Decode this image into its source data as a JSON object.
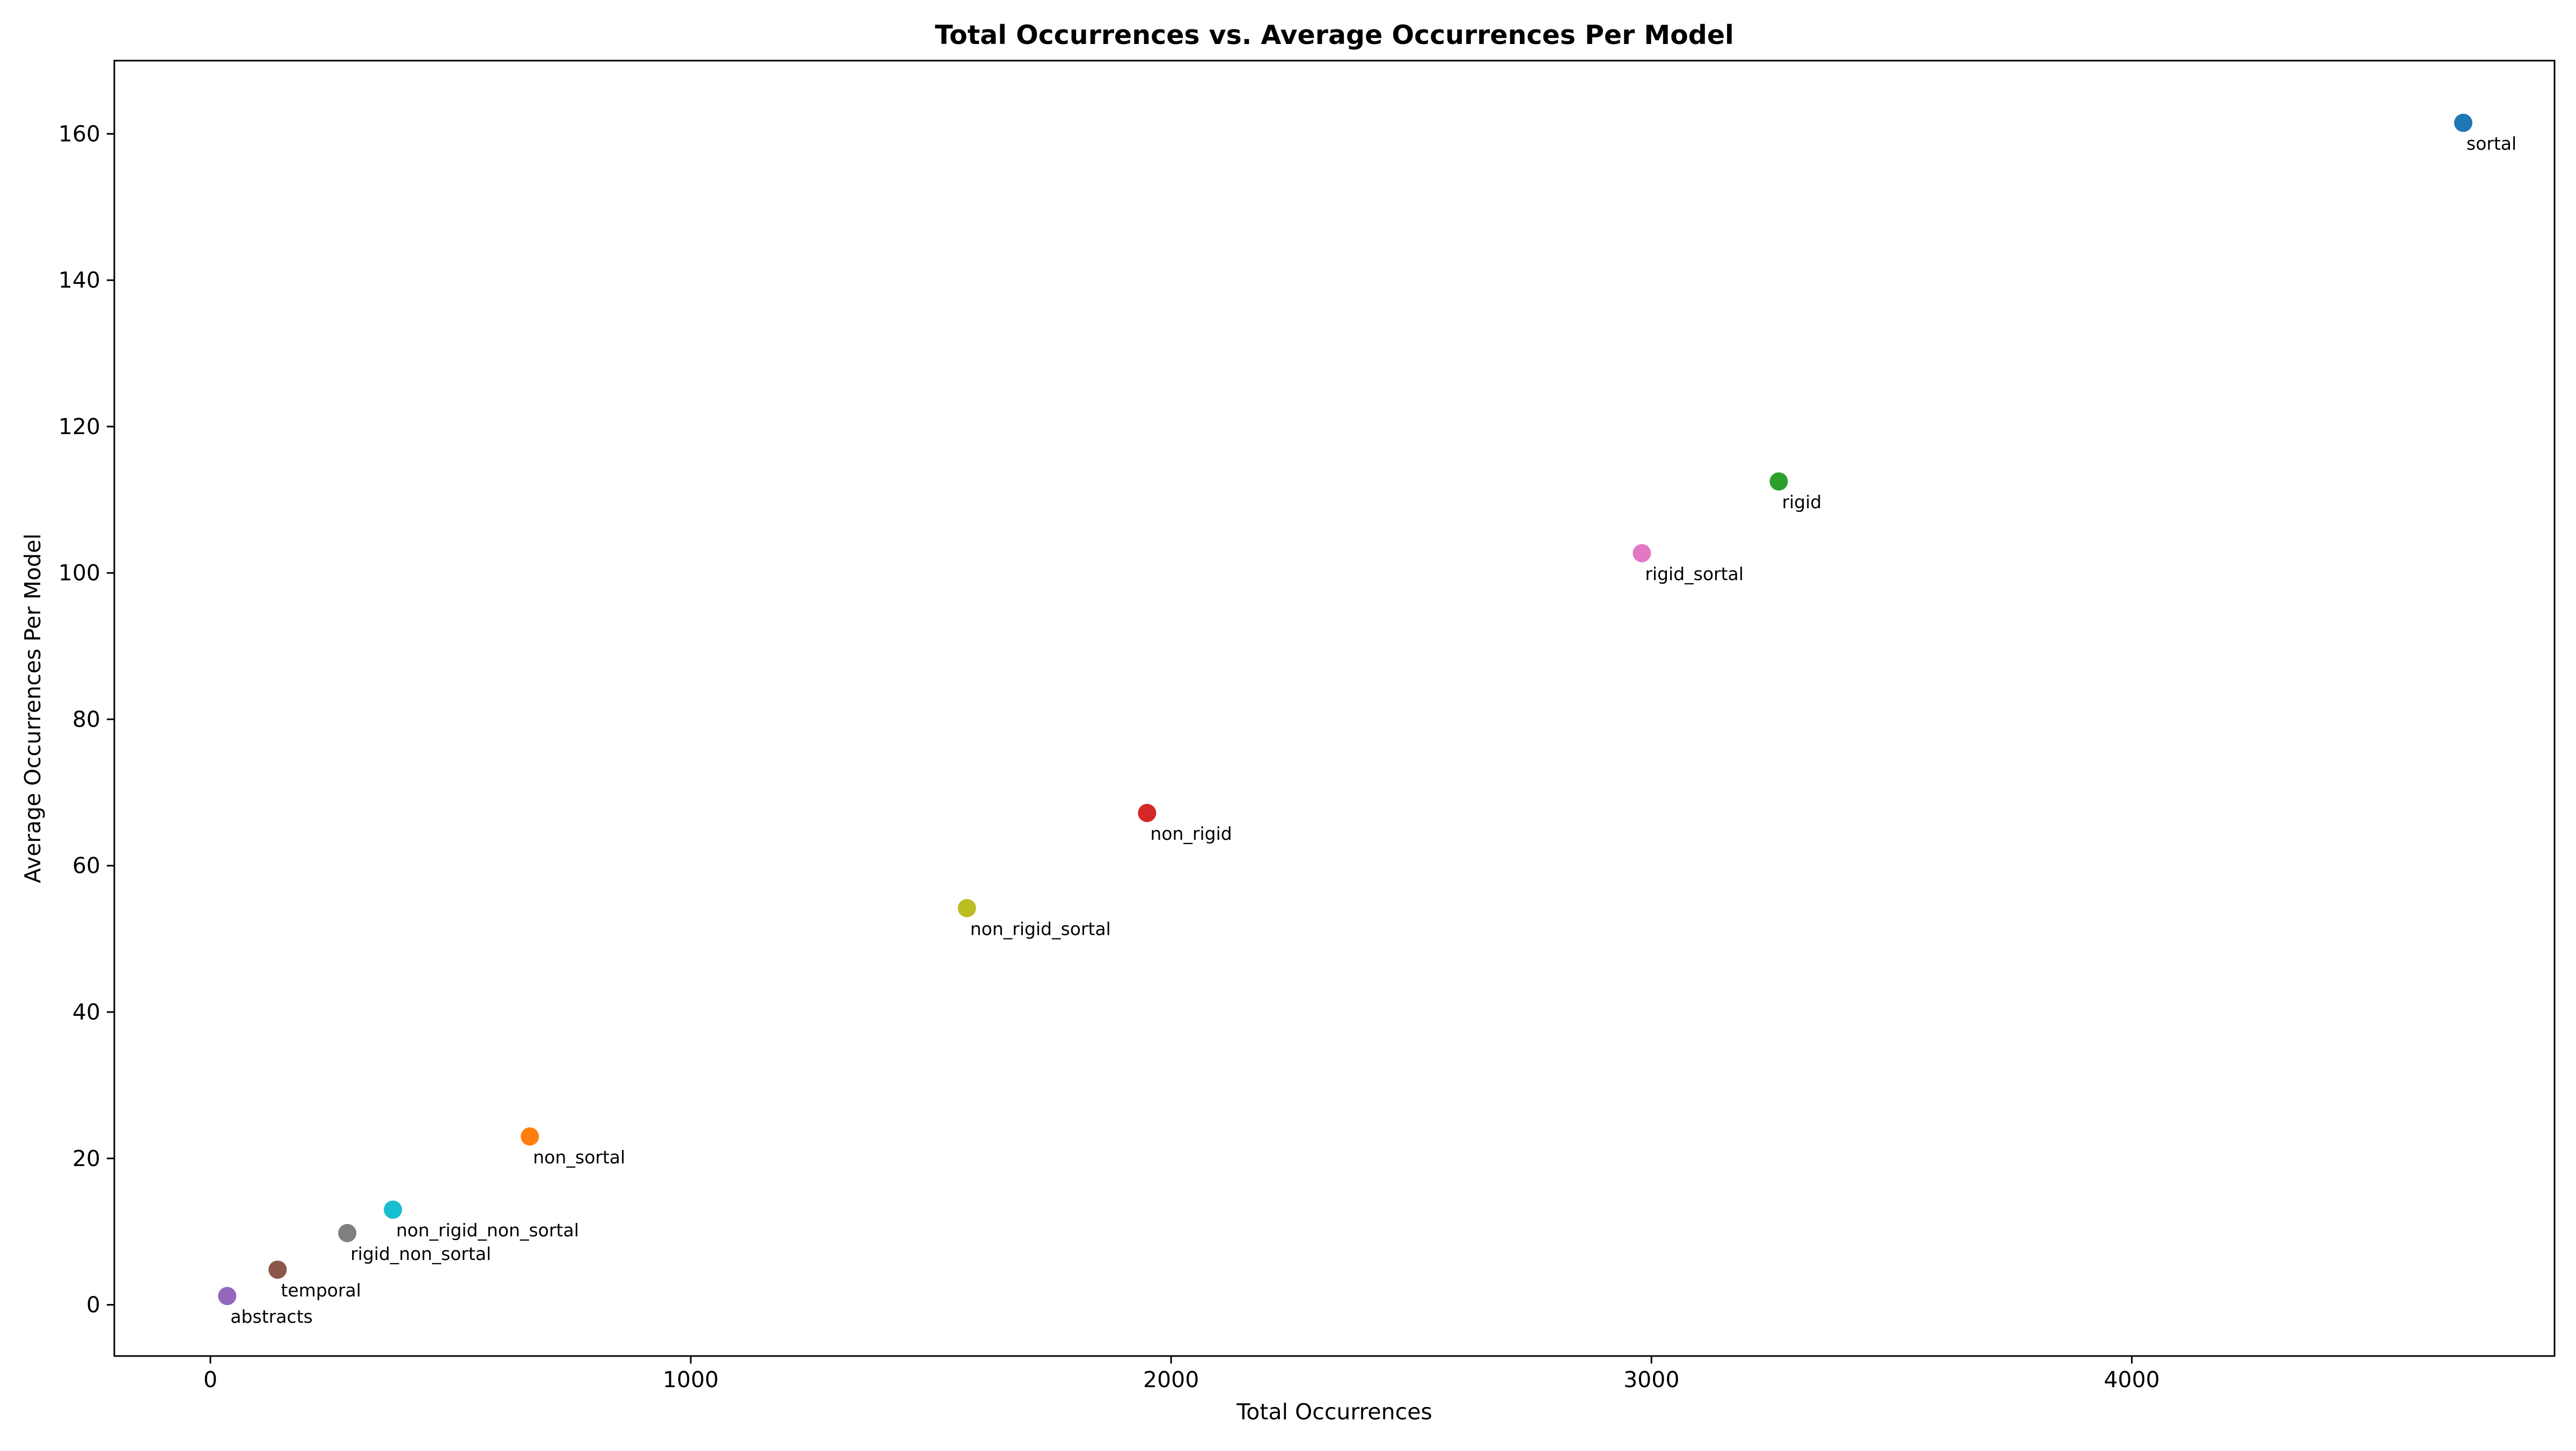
{
  "chart_data": {
    "type": "scatter",
    "title": "Total Occurrences vs. Average Occurrences Per Model",
    "xlabel": "Total Occurrences",
    "ylabel": "Average Occurrences Per Model",
    "xlim": [
      -200,
      4880
    ],
    "ylim": [
      -7,
      170
    ],
    "xticks": [
      0,
      1000,
      2000,
      3000,
      4000
    ],
    "yticks": [
      0,
      20,
      40,
      60,
      80,
      100,
      120,
      140,
      160
    ],
    "grid": false,
    "legend": "none",
    "points": [
      {
        "label": "sortal",
        "x": 4690,
        "y": 161.5,
        "color": "#1f77b4"
      },
      {
        "label": "non_sortal",
        "x": 665,
        "y": 23,
        "color": "#ff7f0e"
      },
      {
        "label": "rigid",
        "x": 3265,
        "y": 112.5,
        "color": "#2ca02c"
      },
      {
        "label": "non_rigid",
        "x": 1950,
        "y": 67.2,
        "color": "#d62728"
      },
      {
        "label": "abstracts",
        "x": 35,
        "y": 1.2,
        "color": "#9467bd"
      },
      {
        "label": "temporal",
        "x": 140,
        "y": 4.8,
        "color": "#8c564b"
      },
      {
        "label": "rigid_sortal",
        "x": 2980,
        "y": 102.7,
        "color": "#e377c2"
      },
      {
        "label": "rigid_non_sortal",
        "x": 285,
        "y": 9.8,
        "color": "#7f7f7f"
      },
      {
        "label": "non_rigid_sortal",
        "x": 1575,
        "y": 54.2,
        "color": "#bcbd22"
      },
      {
        "label": "non_rigid_non_sortal",
        "x": 380,
        "y": 13,
        "color": "#17becf"
      }
    ]
  }
}
